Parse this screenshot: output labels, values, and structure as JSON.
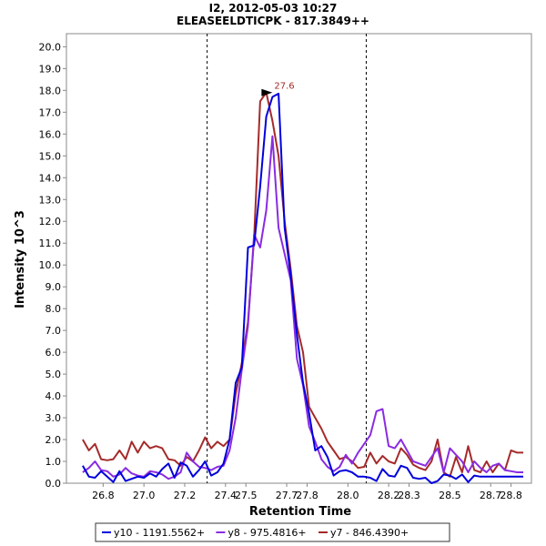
{
  "chart_data": {
    "type": "line",
    "title": "I2, 2012-05-03 10:27",
    "subtitle": "ELEASEELDTICPK - 817.3849++",
    "xlabel": "Retention Time",
    "ylabel": "Intensity 10^3",
    "xlim": [
      26.62,
      28.9
    ],
    "ylim": [
      0,
      20.6
    ],
    "xticks": [
      "26.8",
      "27.0",
      "27.2",
      "27.4",
      "27.5",
      "27.7",
      "27.8",
      "28.0",
      "28.2",
      "28.3",
      "28.5",
      "28.7",
      "28.8"
    ],
    "xtick_values": [
      26.8,
      27.0,
      27.2,
      27.4,
      27.5,
      27.7,
      27.8,
      28.0,
      28.2,
      28.3,
      28.5,
      28.7,
      28.8
    ],
    "yticks": [
      "0.0",
      "1.0",
      "2.0",
      "3.0",
      "4.0",
      "5.0",
      "6.0",
      "7.0",
      "8.0",
      "9.0",
      "10.0",
      "11.0",
      "12.0",
      "13.0",
      "14.0",
      "15.0",
      "16.0",
      "17.0",
      "18.0",
      "19.0",
      "20.0"
    ],
    "vlines": [
      27.31,
      28.09
    ],
    "annotation": {
      "label": "27.6",
      "x": 27.63,
      "y": 17.9
    },
    "legend_position": "bottom",
    "series": [
      {
        "name": "y10 - 1191.5562+",
        "color": "#0000dd",
        "x": [
          26.7,
          26.73,
          26.76,
          26.79,
          26.82,
          26.85,
          26.88,
          26.91,
          26.94,
          26.97,
          27.0,
          27.03,
          27.06,
          27.09,
          27.12,
          27.15,
          27.18,
          27.21,
          27.24,
          27.27,
          27.3,
          27.33,
          27.36,
          27.39,
          27.42,
          27.45,
          27.48,
          27.51,
          27.54,
          27.57,
          27.6,
          27.63,
          27.66,
          27.69,
          27.72,
          27.75,
          27.78,
          27.81,
          27.84,
          27.87,
          27.9,
          27.93,
          27.96,
          27.99,
          28.02,
          28.05,
          28.08,
          28.11,
          28.14,
          28.17,
          28.2,
          28.23,
          28.26,
          28.29,
          28.32,
          28.35,
          28.38,
          28.41,
          28.44,
          28.47,
          28.5,
          28.53,
          28.56,
          28.59,
          28.62,
          28.65,
          28.68,
          28.71,
          28.74,
          28.77,
          28.8,
          28.83,
          28.86
        ],
        "y": [
          0.8,
          0.3,
          0.25,
          0.55,
          0.3,
          0.05,
          0.55,
          0.1,
          0.2,
          0.3,
          0.25,
          0.45,
          0.3,
          0.65,
          0.9,
          0.25,
          0.95,
          0.8,
          0.3,
          0.6,
          1.0,
          0.35,
          0.5,
          0.9,
          2.0,
          4.6,
          5.3,
          10.8,
          10.9,
          13.6,
          16.8,
          17.7,
          17.85,
          11.7,
          9.5,
          6.8,
          4.6,
          3.2,
          1.5,
          1.7,
          1.2,
          0.35,
          0.55,
          0.6,
          0.5,
          0.3,
          0.3,
          0.25,
          0.1,
          0.65,
          0.35,
          0.3,
          0.8,
          0.7,
          0.25,
          0.2,
          0.25,
          0.0,
          0.1,
          0.4,
          0.35,
          0.2,
          0.4,
          0.05,
          0.35,
          0.3,
          0.3,
          0.3,
          0.3,
          0.3,
          0.3,
          0.3,
          0.3
        ]
      },
      {
        "name": "y8 - 975.4816+",
        "color": "#8a2be2",
        "x": [
          26.7,
          26.73,
          26.76,
          26.79,
          26.82,
          26.85,
          26.88,
          26.91,
          26.94,
          26.97,
          27.0,
          27.03,
          27.06,
          27.09,
          27.12,
          27.15,
          27.18,
          27.21,
          27.24,
          27.27,
          27.3,
          27.33,
          27.36,
          27.39,
          27.42,
          27.45,
          27.48,
          27.51,
          27.54,
          27.57,
          27.6,
          27.63,
          27.66,
          27.69,
          27.72,
          27.75,
          27.78,
          27.81,
          27.84,
          27.87,
          27.9,
          27.93,
          27.96,
          27.99,
          28.02,
          28.05,
          28.08,
          28.11,
          28.14,
          28.17,
          28.2,
          28.23,
          28.26,
          28.29,
          28.32,
          28.35,
          28.38,
          28.41,
          28.44,
          28.47,
          28.5,
          28.53,
          28.56,
          28.59,
          28.62,
          28.65,
          28.68,
          28.71,
          28.74,
          28.77,
          28.8,
          28.83,
          28.86
        ],
        "y": [
          0.5,
          0.7,
          1.0,
          0.6,
          0.55,
          0.3,
          0.4,
          0.7,
          0.45,
          0.35,
          0.3,
          0.55,
          0.5,
          0.4,
          0.2,
          0.3,
          0.5,
          1.4,
          1.0,
          0.75,
          0.7,
          0.6,
          0.75,
          0.8,
          1.5,
          3.0,
          5.2,
          7.2,
          11.4,
          10.8,
          12.5,
          15.9,
          11.7,
          10.5,
          9.3,
          5.7,
          4.5,
          2.6,
          1.9,
          1.1,
          0.75,
          0.55,
          0.75,
          1.3,
          0.9,
          1.4,
          1.8,
          2.2,
          3.3,
          3.4,
          1.7,
          1.6,
          2.0,
          1.5,
          1.0,
          0.9,
          0.8,
          1.2,
          1.6,
          0.5,
          1.6,
          1.3,
          1.0,
          0.5,
          1.0,
          0.7,
          0.5,
          0.8,
          0.9,
          0.6,
          0.55,
          0.5,
          0.5
        ]
      },
      {
        "name": "y7 - 846.4390+",
        "color": "#a52a2a",
        "x": [
          26.7,
          26.73,
          26.76,
          26.79,
          26.82,
          26.85,
          26.88,
          26.91,
          26.94,
          26.97,
          27.0,
          27.03,
          27.06,
          27.09,
          27.12,
          27.15,
          27.18,
          27.21,
          27.24,
          27.27,
          27.3,
          27.33,
          27.36,
          27.39,
          27.42,
          27.45,
          27.48,
          27.51,
          27.54,
          27.57,
          27.6,
          27.63,
          27.66,
          27.69,
          27.72,
          27.75,
          27.78,
          27.81,
          27.84,
          27.87,
          27.9,
          27.93,
          27.96,
          27.99,
          28.02,
          28.05,
          28.08,
          28.11,
          28.14,
          28.17,
          28.2,
          28.23,
          28.26,
          28.29,
          28.32,
          28.35,
          28.38,
          28.41,
          28.44,
          28.47,
          28.5,
          28.53,
          28.56,
          28.59,
          28.62,
          28.65,
          28.68,
          28.71,
          28.74,
          28.77,
          28.8,
          28.83,
          28.86
        ],
        "y": [
          2.0,
          1.5,
          1.8,
          1.1,
          1.05,
          1.1,
          1.5,
          1.1,
          1.9,
          1.4,
          1.9,
          1.6,
          1.7,
          1.6,
          1.1,
          1.05,
          0.8,
          1.2,
          1.0,
          1.5,
          2.1,
          1.6,
          1.9,
          1.7,
          2.0,
          4.1,
          5.5,
          7.4,
          11.2,
          17.5,
          17.9,
          16.6,
          15.0,
          12.0,
          9.8,
          7.2,
          6.0,
          3.5,
          3.0,
          2.5,
          1.9,
          1.5,
          1.1,
          1.2,
          1.0,
          0.7,
          0.75,
          1.4,
          0.9,
          1.25,
          1.0,
          0.9,
          1.6,
          1.3,
          0.85,
          0.7,
          0.6,
          1.0,
          2.0,
          0.5,
          0.3,
          1.2,
          0.5,
          1.7,
          0.6,
          0.5,
          1.0,
          0.5,
          0.9,
          0.6,
          1.5,
          1.4,
          1.4
        ]
      }
    ]
  }
}
